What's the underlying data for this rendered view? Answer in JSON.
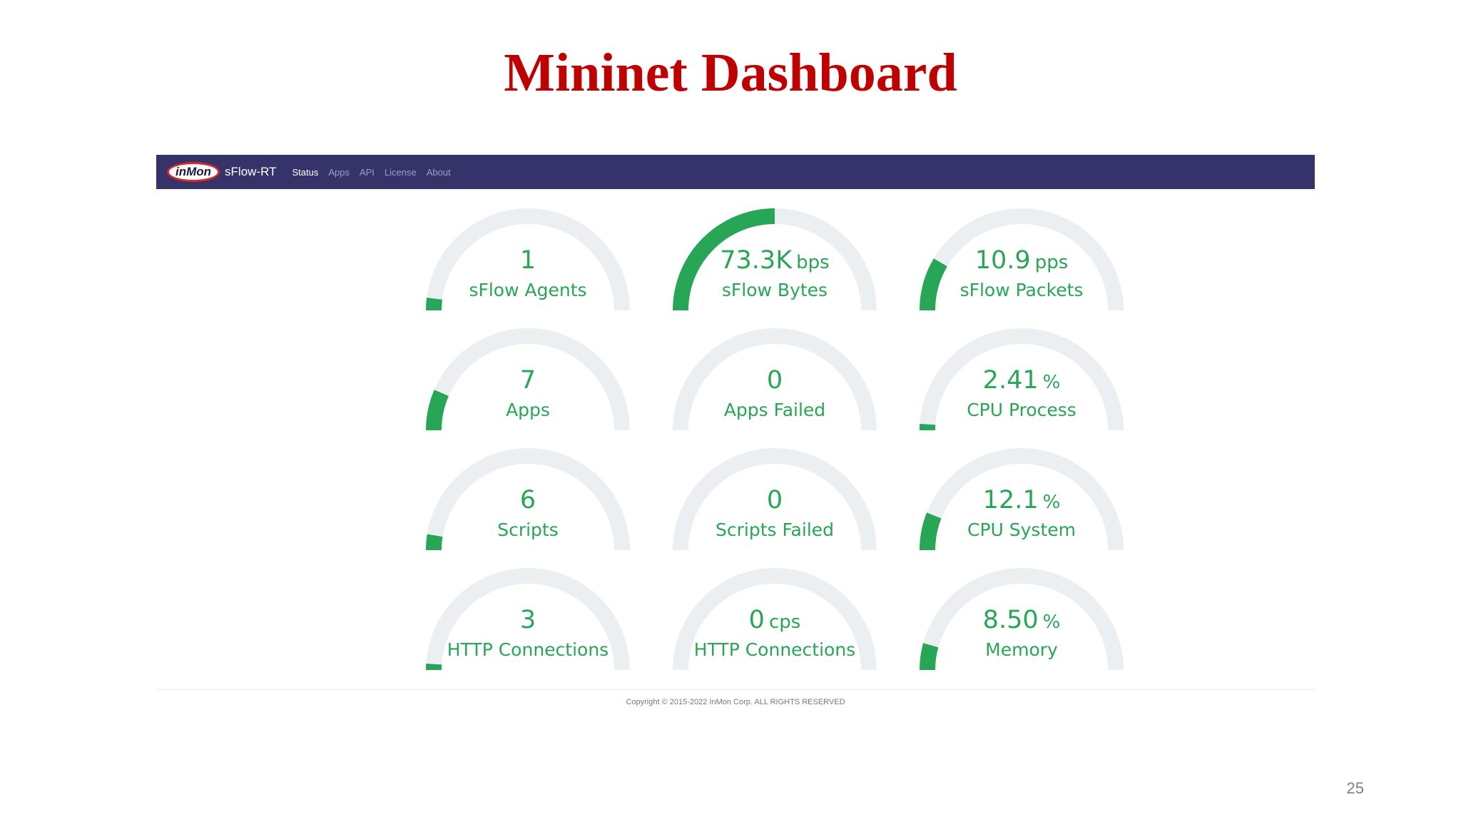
{
  "slide": {
    "title": "Mininet Dashboard",
    "page_number": "25"
  },
  "app": {
    "logo_text": "inMon",
    "brand": "sFlow-RT",
    "nav": [
      {
        "label": "Status",
        "active": true
      },
      {
        "label": "Apps",
        "active": false
      },
      {
        "label": "API",
        "active": false
      },
      {
        "label": "License",
        "active": false
      },
      {
        "label": "About",
        "active": false
      }
    ],
    "copyright": "Copyright © 2015-2022 InMon Corp. ALL RIGHTS RESERVED"
  },
  "colors": {
    "title": "#c00000",
    "navbar": "#36336a",
    "gauge_fill": "#27a655",
    "gauge_track": "#eceff1"
  },
  "gauges": [
    {
      "value": "1",
      "unit": "",
      "label": "sFlow Agents",
      "level": 0.04
    },
    {
      "value": "73.3K",
      "unit": "bps",
      "label": "sFlow Bytes",
      "level": 0.5
    },
    {
      "value": "10.9",
      "unit": "pps",
      "label": "sFlow Packets",
      "level": 0.17
    },
    {
      "value": "7",
      "unit": "",
      "label": "Apps",
      "level": 0.13
    },
    {
      "value": "0",
      "unit": "",
      "label": "Apps Failed",
      "level": 0
    },
    {
      "value": "2.41",
      "unit": "%",
      "label": "CPU Process",
      "level": 0.02
    },
    {
      "value": "6",
      "unit": "",
      "label": "Scripts",
      "level": 0.05
    },
    {
      "value": "0",
      "unit": "",
      "label": "Scripts Failed",
      "level": 0
    },
    {
      "value": "12.1",
      "unit": "%",
      "label": "CPU System",
      "level": 0.12
    },
    {
      "value": "3",
      "unit": "",
      "label": "HTTP Connections",
      "level": 0.02
    },
    {
      "value": "0",
      "unit": "cps",
      "label": "HTTP Connections",
      "level": 0
    },
    {
      "value": "8.50",
      "unit": "%",
      "label": "Memory",
      "level": 0.085
    }
  ]
}
